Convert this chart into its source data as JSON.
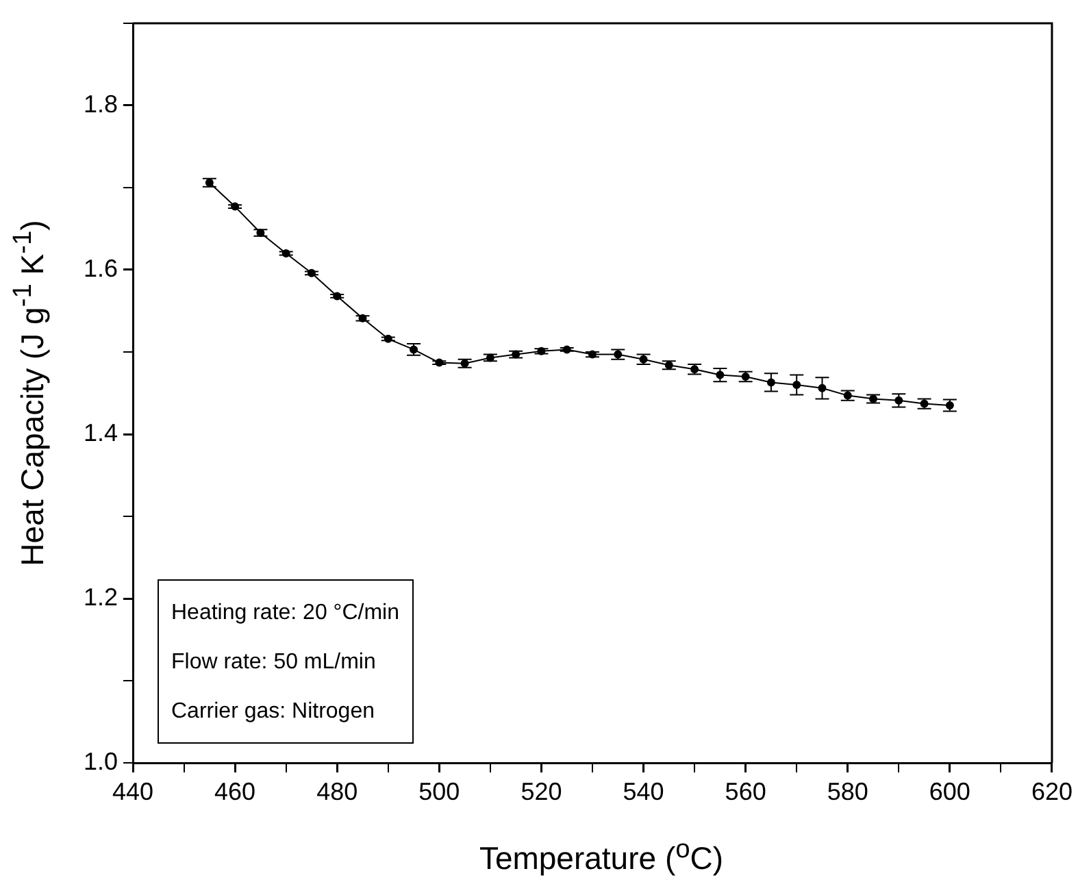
{
  "chart_data": {
    "type": "line",
    "xlabel": "Temperature ($^{o}$C)",
    "ylabel": "Heat Capacity (J g$^{-1}$ K$^{-1}$)",
    "x": [
      455,
      460,
      465,
      470,
      475,
      480,
      485,
      490,
      495,
      500,
      505,
      510,
      515,
      520,
      525,
      530,
      535,
      540,
      545,
      550,
      555,
      560,
      565,
      570,
      575,
      580,
      585,
      590,
      595,
      600
    ],
    "series": [
      {
        "color": "#000000",
        "values": [
          1.706,
          1.677,
          1.645,
          1.62,
          1.596,
          1.568,
          1.541,
          1.516,
          1.503,
          1.487,
          1.486,
          1.493,
          1.497,
          1.501,
          1.503,
          1.497,
          1.497,
          1.491,
          1.484,
          1.479,
          1.472,
          1.47,
          1.463,
          1.46,
          1.456,
          1.447,
          1.443,
          1.441,
          1.437,
          1.435
        ],
        "errors": [
          0.005,
          0.002,
          0.004,
          0.002,
          0.002,
          0.002,
          0.003,
          0.002,
          0.007,
          0.002,
          0.005,
          0.004,
          0.004,
          0.003,
          0.002,
          0.003,
          0.006,
          0.006,
          0.005,
          0.006,
          0.008,
          0.006,
          0.011,
          0.012,
          0.013,
          0.006,
          0.005,
          0.008,
          0.006,
          0.007
        ]
      }
    ],
    "marker": "circle",
    "line_style": "solid",
    "grid": false,
    "legend": false,
    "xlim": [
      440,
      620
    ],
    "xticks": [
      440,
      {
        "value": 450,
        "label": null
      },
      460,
      {
        "value": 470,
        "label": null
      },
      480,
      {
        "value": 490,
        "label": null
      },
      500,
      {
        "value": 510,
        "label": null
      },
      520,
      {
        "value": 530,
        "label": null
      },
      540,
      {
        "value": 550,
        "label": null
      },
      560,
      {
        "value": 570,
        "label": null
      },
      580,
      {
        "value": 590,
        "label": null
      },
      600,
      {
        "value": 610,
        "label": null
      },
      620
    ],
    "ylim": [
      1.0,
      1.9
    ],
    "yticks": [
      {
        "value": 1.0,
        "label": "1.0"
      },
      {
        "value": 1.1,
        "label": null
      },
      1.2,
      {
        "value": 1.3,
        "label": null
      },
      1.4,
      {
        "value": 1.5,
        "label": null
      },
      1.6,
      {
        "value": 1.7,
        "label": null
      },
      1.8,
      {
        "value": 1.9,
        "label": null
      }
    ],
    "annotations": [
      "Heating rate: 20 °C/min",
      "Flow rate: 50 mL/min",
      "Carrier gas: Nitrogen"
    ]
  }
}
